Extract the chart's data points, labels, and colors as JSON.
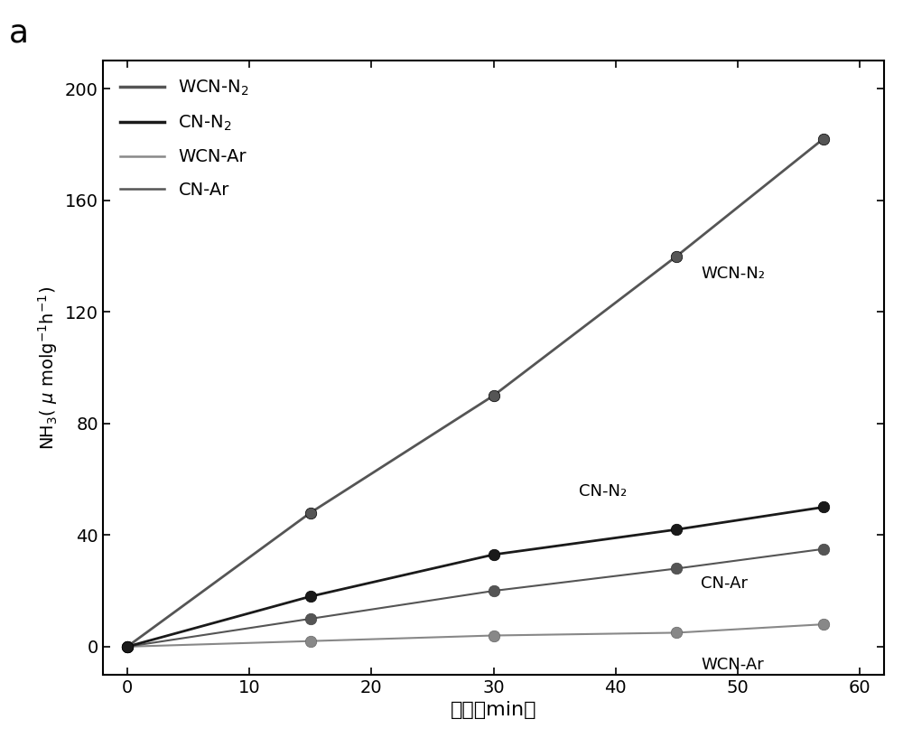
{
  "x": [
    0,
    15,
    30,
    45,
    57
  ],
  "WCN_N2": [
    0,
    48,
    90,
    140,
    182
  ],
  "CN_N2": [
    0,
    18,
    33,
    42,
    50
  ],
  "WCN_Ar": [
    0,
    2,
    4,
    5,
    8
  ],
  "CN_Ar": [
    0,
    10,
    20,
    28,
    35
  ],
  "ylim": [
    -10,
    210
  ],
  "xlim": [
    -2,
    62
  ],
  "yticks": [
    0,
    40,
    80,
    120,
    160,
    200
  ],
  "xticks": [
    0,
    10,
    20,
    30,
    40,
    50,
    60
  ],
  "color_wcn_n2": "#555555",
  "color_cn_n2": "#1a1a1a",
  "color_wcn_ar": "#888888",
  "color_cn_ar": "#555555",
  "linewidth_thick": 2.0,
  "linewidth_thin": 1.5,
  "markersize": 9,
  "bg_color": "#ffffff",
  "annotation_wcn_n2": "WCN-N₂",
  "annotation_cn_n2": "CN-N₂",
  "annotation_wcn_ar": "WCN-Ar",
  "annotation_cn_ar": "CN-Ar",
  "legend_wcn_n2": "WCN-N$_2$",
  "legend_cn_n2": "CN-N$_2$",
  "legend_wcn_ar": "WCN-Ar",
  "legend_cn_ar": "CN-Ar",
  "xlabel_cn": "时间（min）",
  "panel_label": "a"
}
